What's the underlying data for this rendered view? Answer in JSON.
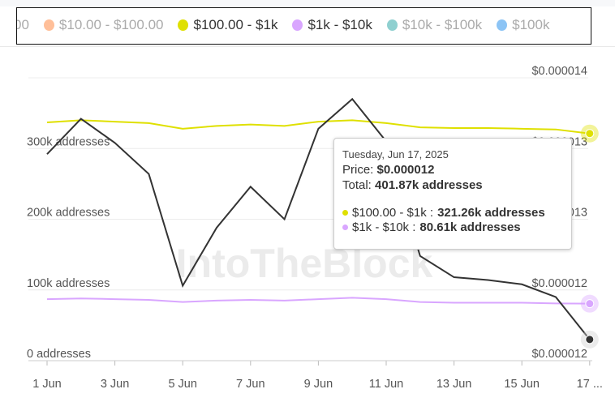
{
  "legend": [
    {
      "label": "00",
      "color": "#b0b0b0",
      "active": false
    },
    {
      "label": "$10.00 - $100.00",
      "color": "#ffbf99",
      "active": false
    },
    {
      "label": "$100.00 - $1k",
      "color": "#dfe000",
      "active": true
    },
    {
      "label": "$1k - $10k",
      "color": "#d9a6ff",
      "active": true
    },
    {
      "label": "$10k - $100k",
      "color": "#8fd0d0",
      "active": false
    },
    {
      "label": "$100k",
      "color": "#8cc4f5",
      "active": false
    }
  ],
  "chart_data": {
    "type": "line",
    "x": [
      "1 Jun",
      "2 Jun",
      "3 Jun",
      "4 Jun",
      "5 Jun",
      "6 Jun",
      "7 Jun",
      "8 Jun",
      "9 Jun",
      "10 Jun",
      "11 Jun",
      "12 Jun",
      "13 Jun",
      "14 Jun",
      "15 Jun",
      "16 Jun",
      "17 Jun"
    ],
    "x_tick_labels": [
      "1 Jun",
      "3 Jun",
      "5 Jun",
      "7 Jun",
      "9 Jun",
      "11 Jun",
      "13 Jun",
      "15 Jun",
      "17 ..."
    ],
    "y_left_ticks": [
      "0 addresses",
      "100k addresses",
      "200k addresses",
      "300k addresses"
    ],
    "y_left_range_k": [
      0,
      400
    ],
    "y_right_ticks": [
      "$0.000012",
      "$0.000012",
      "$0.000013",
      "$0.000013",
      "$0.000014"
    ],
    "y_right_range": [
      1.2e-05,
      1.4e-05
    ],
    "grid": true,
    "watermark": "IntoTheBlock",
    "series": [
      {
        "name": "$100.00 - $1k",
        "axis": "left",
        "unit": "k addresses",
        "color": "#dfe000",
        "values": [
          337,
          340,
          338,
          336,
          328,
          332,
          334,
          332,
          338,
          340,
          336,
          330,
          329,
          329,
          328,
          327,
          321.26
        ]
      },
      {
        "name": "$1k - $10k",
        "axis": "left",
        "unit": "k addresses",
        "color": "#d9a6ff",
        "values": [
          87,
          88,
          87,
          86,
          83,
          85,
          86,
          85,
          87,
          89,
          87,
          83,
          82,
          82,
          82,
          81,
          80.61
        ]
      },
      {
        "name": "Price",
        "axis": "right",
        "color": "#333333",
        "values": [
          1.346e-05,
          1.371e-05,
          1.354e-05,
          1.332e-05,
          1.253e-05,
          1.294e-05,
          1.323e-05,
          1.3e-05,
          1.364e-05,
          1.385e-05,
          1.355e-05,
          1.274e-05,
          1.259e-05,
          1.257e-05,
          1.254e-05,
          1.245e-05,
          1.215e-05
        ]
      }
    ]
  },
  "tooltip": {
    "date": "Tuesday, Jun 17, 2025",
    "price_label": "Price:",
    "price_value": "$0.000012",
    "total_label": "Total:",
    "total_value": "401.87k addresses",
    "rows": [
      {
        "label": "$100.00 - $1k :",
        "value": "321.26k addresses",
        "color": "#dfe000"
      },
      {
        "label": "$1k - $10k :",
        "value": "80.61k addresses",
        "color": "#d9a6ff"
      }
    ]
  }
}
